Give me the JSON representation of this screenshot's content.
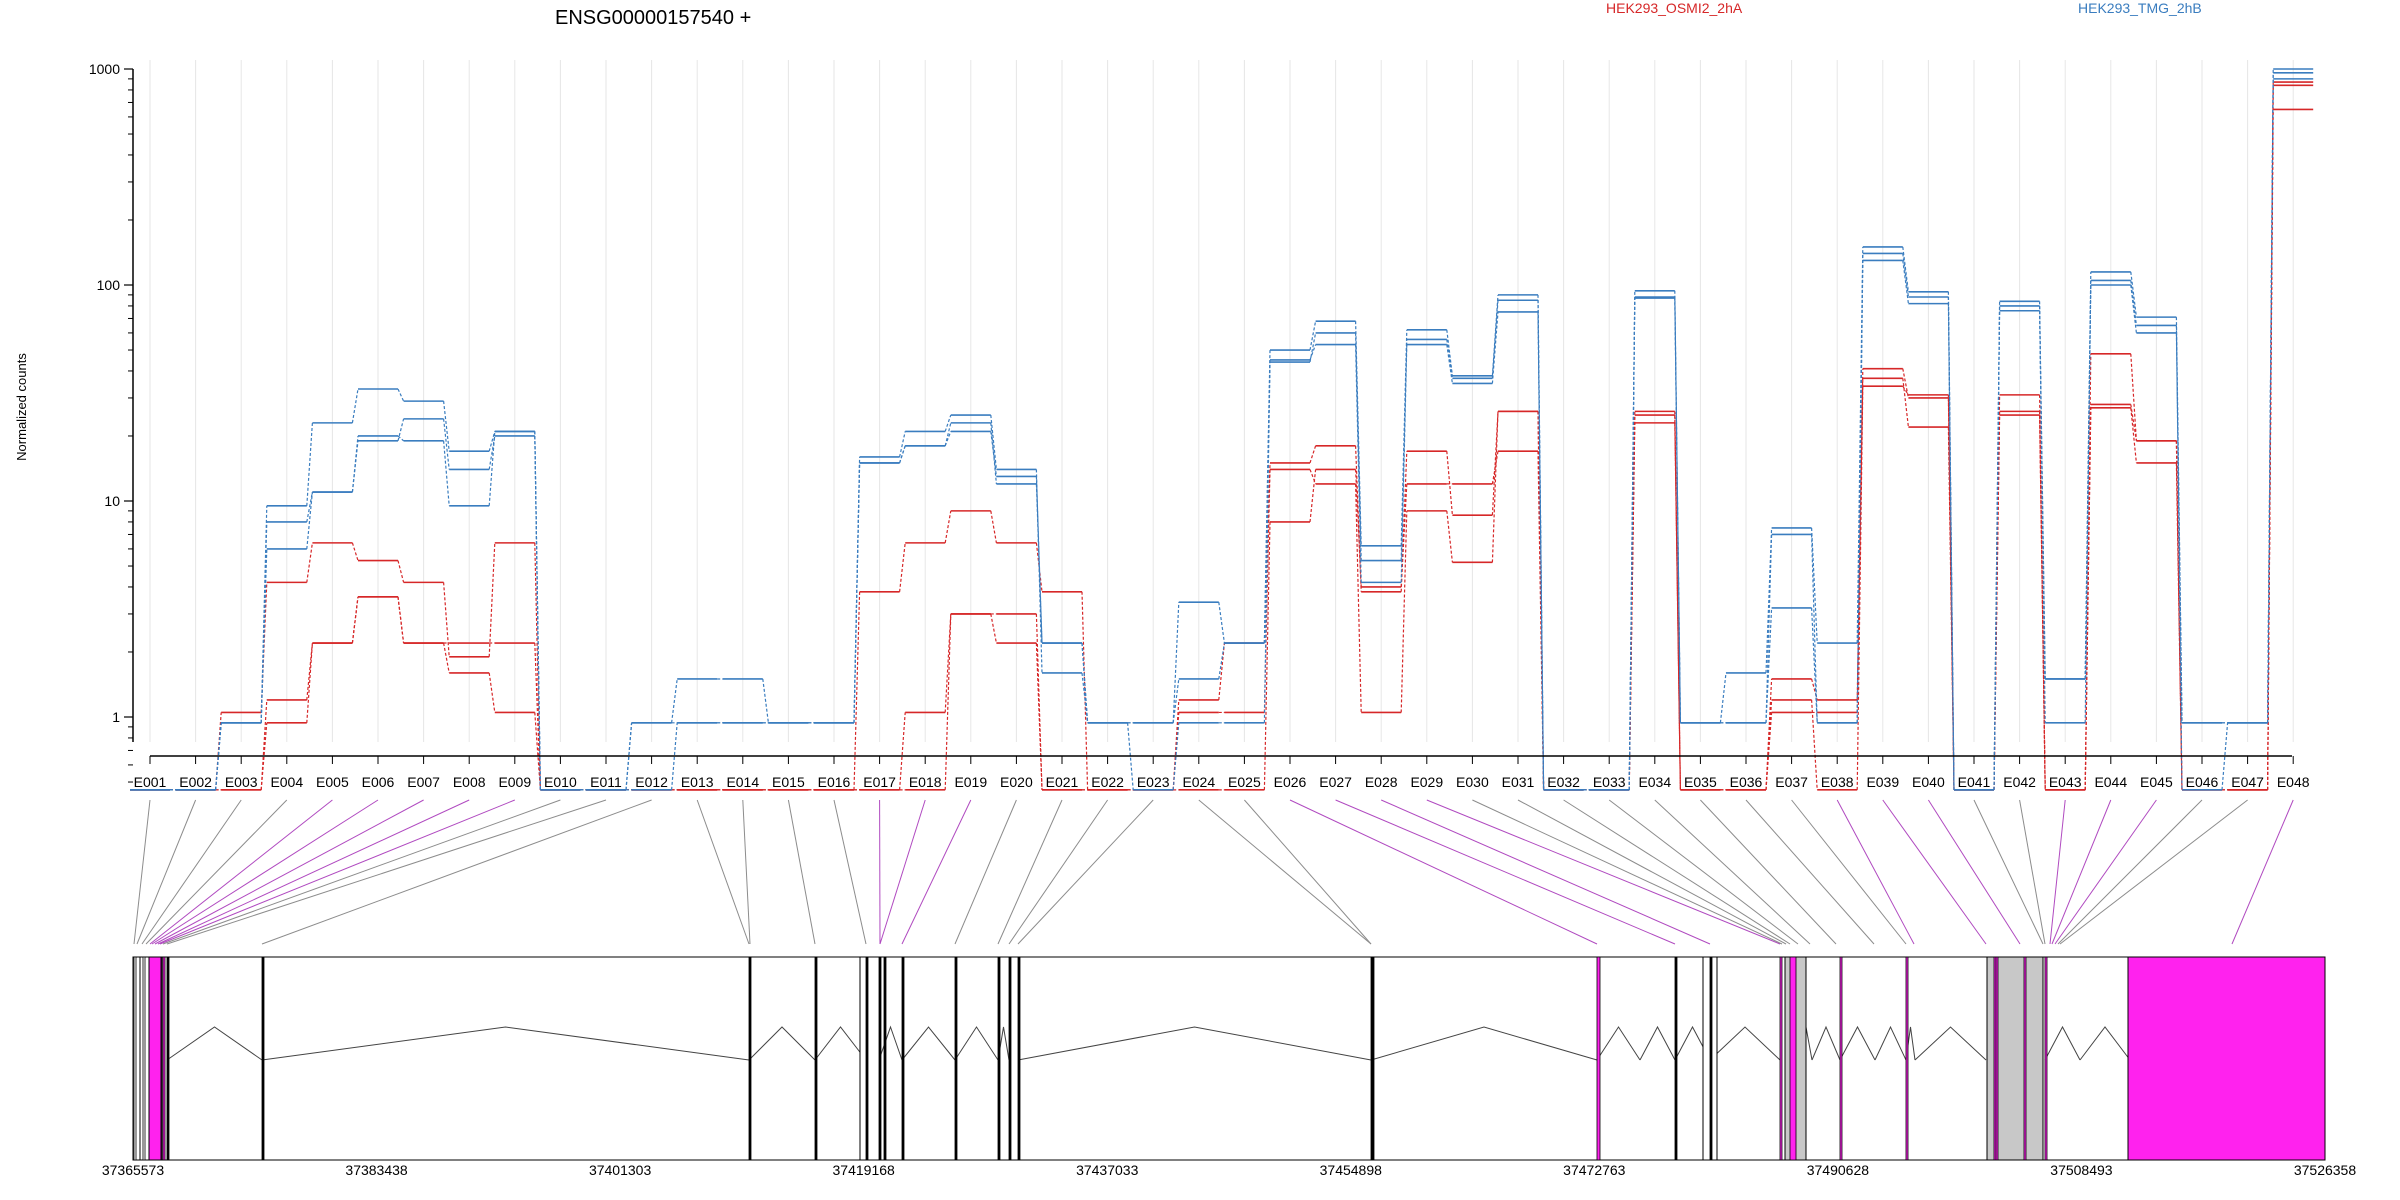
{
  "chart_data": {
    "type": "line",
    "title": "ENSG00000157540 +",
    "ylabel": "Normalized counts",
    "yscale": "log",
    "ylim": [
      0.45,
      1000
    ],
    "yticks": [
      {
        "value": 1,
        "label": "1"
      },
      {
        "value": 10,
        "label": "10"
      },
      {
        "value": 100,
        "label": "100"
      },
      {
        "value": 1000,
        "label": "1000"
      }
    ],
    "legend_placement": "top",
    "colors": {
      "OSMI2": "#d62728",
      "TMG": "#3a7dbf",
      "exon": "#ff22ee",
      "exon_gray": "#c8c8c8",
      "grid": "#e6e6e6"
    },
    "categories": [
      "E001",
      "E002",
      "E003",
      "E004",
      "E005",
      "E006",
      "E007",
      "E008",
      "E009",
      "E010",
      "E011",
      "E012",
      "E013",
      "E014",
      "E015",
      "E016",
      "E017",
      "E018",
      "E019",
      "E020",
      "E021",
      "E022",
      "E023",
      "E024",
      "E025",
      "E026",
      "E027",
      "E028",
      "E029",
      "E030",
      "E031",
      "E032",
      "E033",
      "E034",
      "E035",
      "E036",
      "E037",
      "E038",
      "E039",
      "E040",
      "E041",
      "E042",
      "E043",
      "E044",
      "E045",
      "E046",
      "E047",
      "E048"
    ],
    "series": [
      {
        "name": "HEK293_OSMI2_2hA",
        "color": "#d62728",
        "values": [
          0.46,
          0.46,
          0.46,
          0.94,
          2.2,
          3.6,
          2.2,
          2.2,
          2.2,
          0.46,
          0.46,
          0.46,
          0.46,
          0.46,
          0.46,
          0.46,
          0.46,
          0.46,
          3.0,
          3.0,
          0.46,
          0.46,
          0.46,
          0.46,
          0.46,
          8.0,
          14.0,
          4.0,
          12.0,
          12.0,
          17.0,
          0.46,
          0.46,
          23.0,
          0.46,
          0.46,
          1.2,
          0.46,
          34.0,
          31.0,
          0.46,
          26.0,
          0.46,
          48.0,
          19.0,
          0.46,
          0.46,
          650
        ]
      },
      {
        "name": "",
        "color": "#d62728",
        "values": [
          0.46,
          0.46,
          0.46,
          1.2,
          2.2,
          3.6,
          2.2,
          1.6,
          1.05,
          0.46,
          0.46,
          0.46,
          0.46,
          0.46,
          0.46,
          0.46,
          0.46,
          1.05,
          3.0,
          2.2,
          0.46,
          0.46,
          0.46,
          1.05,
          1.05,
          14.0,
          12.0,
          1.05,
          9.0,
          5.2,
          26.0,
          0.46,
          0.46,
          26.0,
          0.46,
          0.46,
          1.05,
          1.05,
          37.0,
          22.0,
          0.46,
          31.0,
          0.46,
          28.0,
          19.0,
          0.46,
          0.46,
          840
        ]
      },
      {
        "name": "",
        "color": "#d62728",
        "values": [
          0.46,
          0.46,
          1.05,
          4.2,
          6.4,
          5.3,
          4.2,
          1.9,
          6.4,
          0.46,
          0.46,
          0.46,
          0.46,
          0.46,
          0.46,
          0.46,
          3.8,
          6.4,
          9.0,
          6.4,
          3.8,
          0.46,
          0.46,
          1.2,
          2.2,
          15.0,
          18.0,
          3.8,
          17.0,
          8.6,
          26.0,
          0.46,
          0.46,
          25.0,
          0.46,
          0.46,
          1.5,
          1.2,
          41.0,
          30.0,
          0.46,
          25.0,
          0.46,
          27.0,
          15.0,
          0.46,
          0.46,
          870
        ]
      },
      {
        "name": "HEK293_TMG_2hB",
        "color": "#3a7dbf",
        "values": [
          0.46,
          0.46,
          0.94,
          6.0,
          11.0,
          20.0,
          19.0,
          9.5,
          21.0,
          0.46,
          0.46,
          0.46,
          0.94,
          0.94,
          0.94,
          0.94,
          15.0,
          18.0,
          21.0,
          13.0,
          2.2,
          0.94,
          0.94,
          1.5,
          2.2,
          45.0,
          53.0,
          4.2,
          53.0,
          35.0,
          75.0,
          0.46,
          0.46,
          88.0,
          0.94,
          0.94,
          7.0,
          0.94,
          130.0,
          82.0,
          0.46,
          76.0,
          1.5,
          100.0,
          60.0,
          0.94,
          0.94,
          960
        ]
      },
      {
        "name": "",
        "color": "#3a7dbf",
        "values": [
          0.46,
          0.46,
          0.94,
          9.5,
          23.0,
          33.0,
          29.0,
          17.0,
          21.0,
          0.46,
          0.46,
          0.94,
          1.5,
          1.5,
          0.94,
          0.94,
          16.0,
          21.0,
          25.0,
          14.0,
          1.6,
          0.94,
          0.94,
          3.4,
          2.2,
          50.0,
          68.0,
          6.2,
          62.0,
          38.0,
          90.0,
          0.46,
          0.46,
          94.0,
          0.94,
          1.6,
          7.5,
          2.2,
          150.0,
          93.0,
          0.46,
          84.0,
          1.5,
          115.0,
          71.0,
          0.94,
          0.94,
          1000
        ]
      },
      {
        "name": "",
        "color": "#3a7dbf",
        "values": [
          0.46,
          0.46,
          0.94,
          8.0,
          11.0,
          19.0,
          24.0,
          14.0,
          20.0,
          0.46,
          0.46,
          0.94,
          0.94,
          0.94,
          0.94,
          0.94,
          15.0,
          18.0,
          23.0,
          12.0,
          2.2,
          0.94,
          0.46,
          0.94,
          0.94,
          44.0,
          60.0,
          5.3,
          56.0,
          37.0,
          85.0,
          0.46,
          0.46,
          87.0,
          0.94,
          0.94,
          3.2,
          0.94,
          140.0,
          88.0,
          0.46,
          80.0,
          0.94,
          105.0,
          65.0,
          0.46,
          0.94,
          900
        ]
      }
    ],
    "gene_axis_ticks": [
      "37365573",
      "37383438",
      "37401303",
      "37419168",
      "37437033",
      "37454898",
      "37472763",
      "37490628",
      "37508493",
      "37526358"
    ]
  }
}
